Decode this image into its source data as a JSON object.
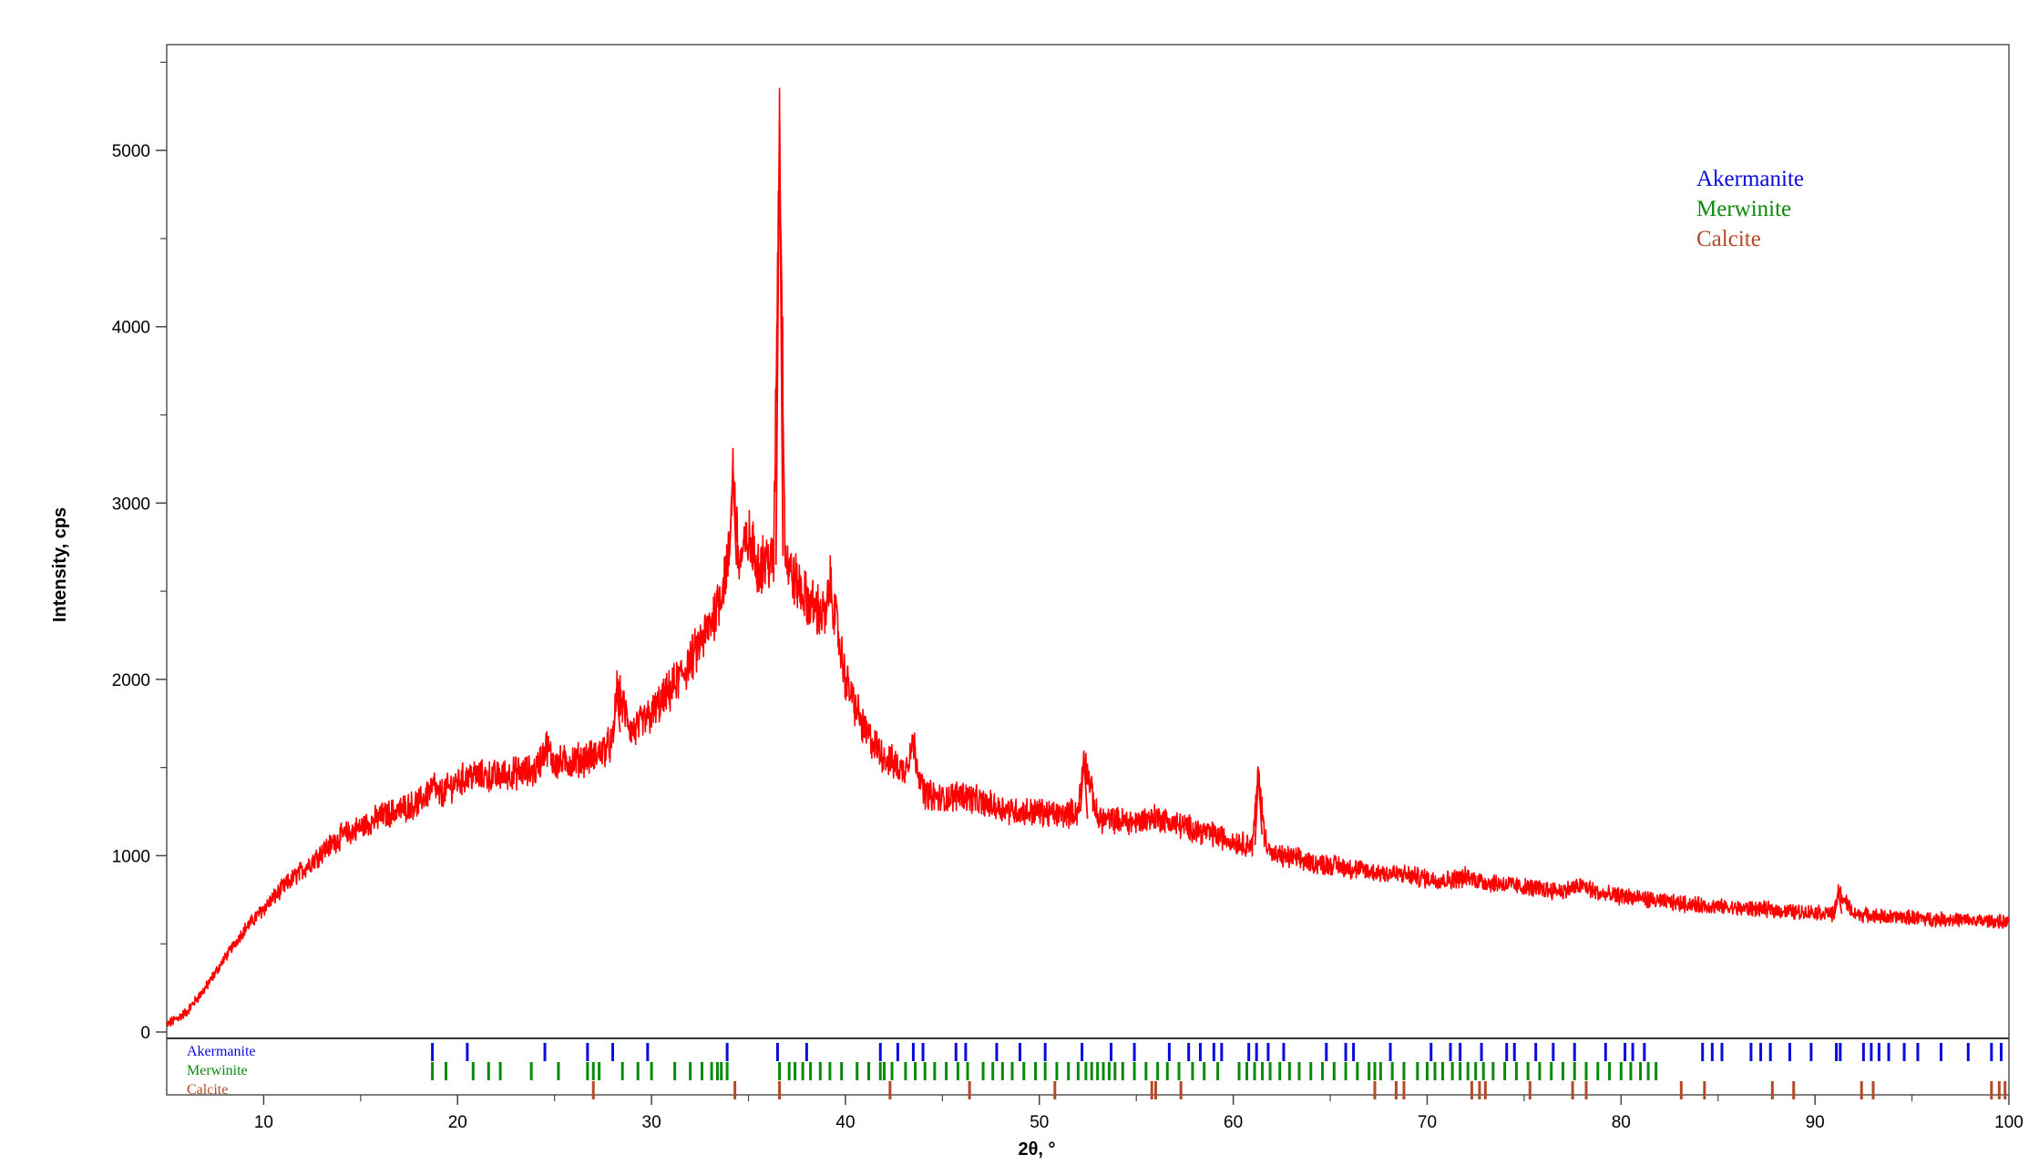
{
  "chart_data": {
    "type": "line",
    "title": "",
    "xlabel": "2θ, °",
    "ylabel": "Intensity, cps",
    "xlim": [
      5,
      100
    ],
    "ylim": [
      0,
      5600
    ],
    "x_ticks": [
      10,
      20,
      30,
      40,
      50,
      60,
      70,
      80,
      90,
      100
    ],
    "y_ticks": [
      0,
      1000,
      2000,
      3000,
      4000,
      5000
    ],
    "grid": false,
    "legend_position": "top-right",
    "series": [
      {
        "color": "#ff0000",
        "x": [
          5,
          6,
          7,
          8,
          9,
          10,
          11,
          12,
          13,
          14,
          15,
          16,
          17,
          18,
          18.8,
          19,
          20,
          20.8,
          21,
          22,
          23,
          24,
          24.6,
          25,
          26,
          27,
          28,
          28.2,
          29,
          30,
          31,
          32,
          33,
          33.6,
          34,
          34.2,
          34.5,
          35,
          35.5,
          36,
          36.3,
          36.6,
          36.9,
          37.2,
          38,
          39,
          39.2,
          40,
          41,
          42,
          43,
          43.5,
          44,
          45,
          46,
          47,
          48,
          49,
          50,
          51,
          52,
          52.3,
          53,
          54,
          55,
          56,
          57,
          58,
          59,
          60,
          61,
          61.3,
          61.6,
          62,
          63,
          64,
          65,
          66,
          67,
          68,
          69,
          70,
          71,
          72,
          73,
          74,
          75,
          76,
          77,
          78,
          79,
          80,
          81,
          82,
          83,
          84,
          85,
          86,
          87,
          88,
          89,
          90,
          91,
          91.2,
          92,
          93,
          94,
          95,
          96,
          97,
          98,
          99,
          100
        ],
        "y": [
          40,
          110,
          250,
          420,
          580,
          700,
          820,
          920,
          1020,
          1110,
          1160,
          1220,
          1260,
          1300,
          1400,
          1340,
          1420,
          1460,
          1450,
          1450,
          1470,
          1480,
          1620,
          1520,
          1540,
          1560,
          1640,
          1950,
          1700,
          1800,
          1940,
          2100,
          2300,
          2500,
          2700,
          3200,
          2650,
          2800,
          2650,
          2680,
          2650,
          5180,
          2700,
          2600,
          2450,
          2350,
          2550,
          2000,
          1700,
          1560,
          1480,
          1640,
          1360,
          1320,
          1350,
          1300,
          1270,
          1250,
          1250,
          1230,
          1250,
          1560,
          1210,
          1200,
          1190,
          1220,
          1180,
          1150,
          1120,
          1080,
          1060,
          1480,
          1120,
          1000,
          990,
          960,
          950,
          930,
          910,
          900,
          890,
          870,
          860,
          880,
          850,
          840,
          820,
          810,
          800,
          830,
          780,
          770,
          760,
          740,
          730,
          720,
          710,
          700,
          700,
          690,
          680,
          680,
          670,
          800,
          670,
          660,
          650,
          650,
          640,
          640,
          630,
          630,
          620
        ]
      }
    ],
    "legend": [
      {
        "label": "Akermanite",
        "color": "#0a0adc"
      },
      {
        "label": "Merwinite",
        "color": "#0a8a0a"
      },
      {
        "label": "Calcite",
        "color": "#b24a2a"
      }
    ],
    "reference_phases": [
      {
        "name": "Akermanite",
        "color": "#0a0adc",
        "positions": [
          18.7,
          20.5,
          24.5,
          26.7,
          28.0,
          29.8,
          33.9,
          36.5,
          38.0,
          41.8,
          42.7,
          43.5,
          44.0,
          45.7,
          46.2,
          47.8,
          49.0,
          50.3,
          52.2,
          53.7,
          54.9,
          56.7,
          57.7,
          58.3,
          59.0,
          59.4,
          60.8,
          61.2,
          61.8,
          62.6,
          64.8,
          65.8,
          66.2,
          68.1,
          70.2,
          71.2,
          71.7,
          72.8,
          74.1,
          74.5,
          75.6,
          76.5,
          77.6,
          79.2,
          80.2,
          80.6,
          81.2,
          84.2,
          84.7,
          85.2,
          86.7,
          87.2,
          87.7,
          88.7,
          89.8,
          91.1,
          91.3,
          92.5,
          92.9,
          93.3,
          93.8,
          94.6,
          95.3,
          96.5,
          97.9,
          99.1,
          99.6
        ]
      },
      {
        "name": "Merwinite",
        "color": "#0a8a0a",
        "positions": [
          18.7,
          19.4,
          20.8,
          21.6,
          22.2,
          23.8,
          25.2,
          26.7,
          27.0,
          27.3,
          28.5,
          29.3,
          30.0,
          31.2,
          32.0,
          32.6,
          33.1,
          33.4,
          33.6,
          33.9,
          36.6,
          37.1,
          37.4,
          37.8,
          38.2,
          38.7,
          39.2,
          39.8,
          40.6,
          41.2,
          41.8,
          42.0,
          42.4,
          43.1,
          43.6,
          44.1,
          44.6,
          45.2,
          45.8,
          46.3,
          47.1,
          47.6,
          48.1,
          48.6,
          49.2,
          49.8,
          50.3,
          50.9,
          51.5,
          52.0,
          52.4,
          52.7,
          53.0,
          53.3,
          53.6,
          53.9,
          54.3,
          54.9,
          55.5,
          56.1,
          56.6,
          57.2,
          57.9,
          58.5,
          59.2,
          60.3,
          60.7,
          61.1,
          61.5,
          61.9,
          62.4,
          62.9,
          63.4,
          64.0,
          64.6,
          65.2,
          65.8,
          66.4,
          67.0,
          67.3,
          67.6,
          68.2,
          68.8,
          69.5,
          70.0,
          70.4,
          70.8,
          71.3,
          71.7,
          72.1,
          72.5,
          72.9,
          73.4,
          74.0,
          74.6,
          75.2,
          75.8,
          76.4,
          77.0,
          77.6,
          78.2,
          78.8,
          79.4,
          80.0,
          80.5,
          81.0,
          81.4,
          81.8
        ]
      },
      {
        "name": "Calcite",
        "color": "#b24a2a",
        "positions": [
          27.0,
          34.3,
          36.6,
          42.3,
          46.4,
          50.8,
          55.8,
          56.0,
          57.3,
          67.3,
          68.4,
          68.8,
          72.3,
          72.7,
          73.0,
          75.3,
          77.5,
          78.2,
          83.1,
          84.3,
          87.8,
          88.9,
          92.4,
          93.0,
          99.1,
          99.5,
          99.8
        ]
      }
    ]
  }
}
